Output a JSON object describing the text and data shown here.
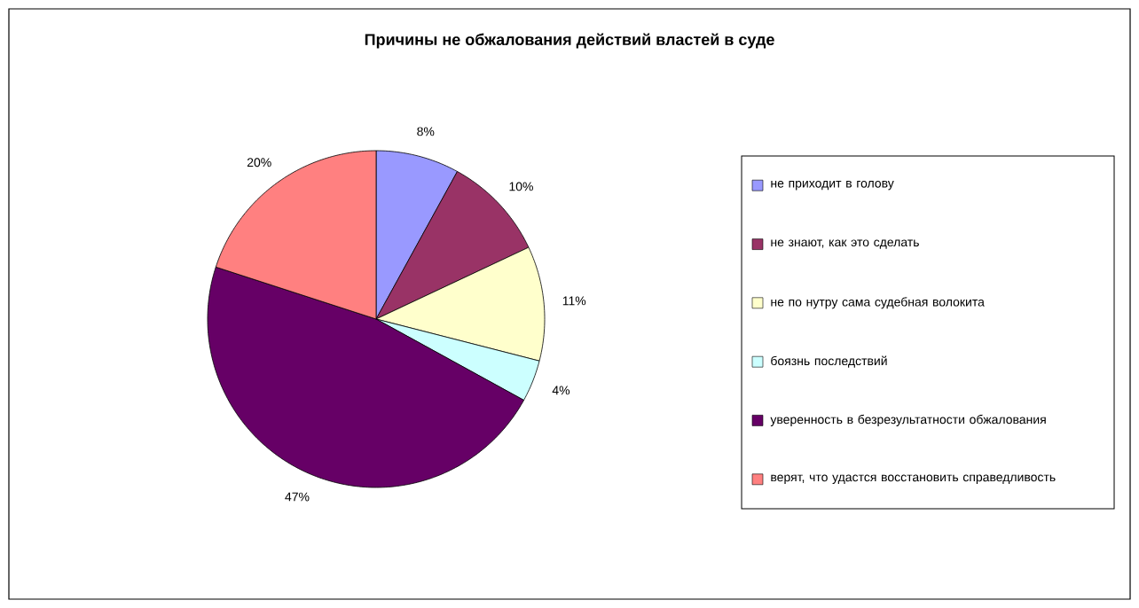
{
  "chart_data": {
    "type": "pie",
    "title": "Причины не обжалования действий властей в суде",
    "categories": [
      "не приходит в голову",
      "не знают, как это сделать",
      "не по нутру сама судебная волокита",
      "боязнь последствий",
      "уверенность в безрезультатности обжалования",
      "верят, что удастся восстановить справедливость"
    ],
    "values": [
      8,
      10,
      11,
      4,
      47,
      20
    ],
    "value_labels": [
      "8%",
      "10%",
      "11%",
      "4%",
      "47%",
      "20%"
    ],
    "colors": [
      "#9999ff",
      "#993366",
      "#ffffcc",
      "#ccffff",
      "#660066",
      "#ff8080"
    ],
    "legend": "right"
  }
}
